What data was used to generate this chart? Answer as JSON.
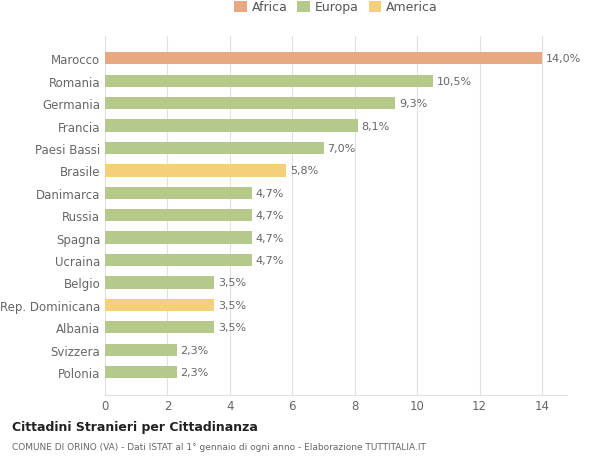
{
  "categories": [
    "Polonia",
    "Svizzera",
    "Albania",
    "Rep. Dominicana",
    "Belgio",
    "Ucraina",
    "Spagna",
    "Russia",
    "Danimarca",
    "Brasile",
    "Paesi Bassi",
    "Francia",
    "Germania",
    "Romania",
    "Marocco"
  ],
  "values": [
    2.3,
    2.3,
    3.5,
    3.5,
    3.5,
    4.7,
    4.7,
    4.7,
    4.7,
    5.8,
    7.0,
    8.1,
    9.3,
    10.5,
    14.0
  ],
  "labels": [
    "2,3%",
    "2,3%",
    "3,5%",
    "3,5%",
    "3,5%",
    "4,7%",
    "4,7%",
    "4,7%",
    "4,7%",
    "5,8%",
    "7,0%",
    "8,1%",
    "9,3%",
    "10,5%",
    "14,0%"
  ],
  "colors": [
    "#b5c98a",
    "#b5c98a",
    "#b5c98a",
    "#f5d07a",
    "#b5c98a",
    "#b5c98a",
    "#b5c98a",
    "#b5c98a",
    "#b5c98a",
    "#f5d07a",
    "#b5c98a",
    "#b5c98a",
    "#b5c98a",
    "#b5c98a",
    "#e8a882"
  ],
  "legend_labels": [
    "Africa",
    "Europa",
    "America"
  ],
  "legend_colors": [
    "#e8a882",
    "#b5c98a",
    "#f5d07a"
  ],
  "title": "Cittadini Stranieri per Cittadinanza",
  "subtitle": "COMUNE DI ORINO (VA) - Dati ISTAT al 1° gennaio di ogni anno - Elaborazione TUTTITALIA.IT",
  "xlim_max": 14.8,
  "xticks": [
    0,
    2,
    4,
    6,
    8,
    10,
    12,
    14
  ],
  "background_color": "#ffffff",
  "grid_color": "#e0e0e0",
  "bar_height": 0.55,
  "label_fontsize": 8.0,
  "tick_fontsize": 8.5,
  "label_color": "#666666",
  "tick_color": "#666666"
}
